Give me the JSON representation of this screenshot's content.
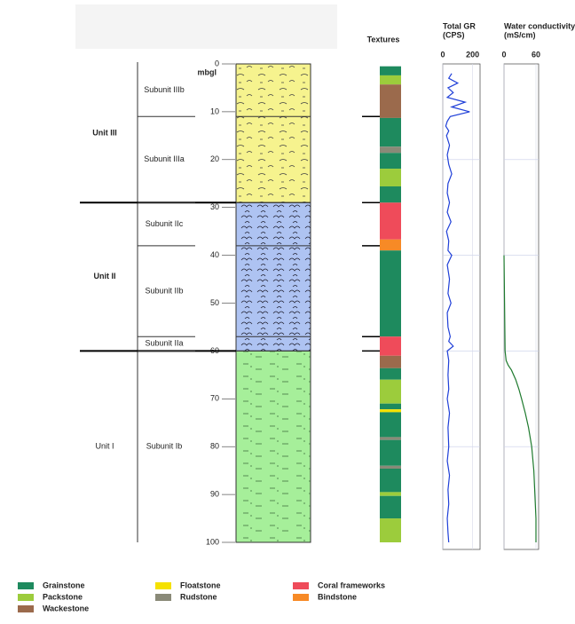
{
  "depth_axis": {
    "label": "mbgl",
    "lim": [
      0,
      100
    ],
    "ticks": [
      0,
      10,
      20,
      30,
      40,
      50,
      60,
      70,
      80,
      90,
      100
    ]
  },
  "units": [
    {
      "label": "Unit III",
      "top": 0,
      "base": 29,
      "color": "#f6f38e"
    },
    {
      "label": "Unit II",
      "top": 29,
      "base": 60,
      "color": "#aec3f2"
    },
    {
      "label": "Unit I",
      "top": 60,
      "base": 100,
      "color": "#a6ef9a"
    }
  ],
  "subunits": [
    {
      "label": "Subunit IIIb",
      "top": 0,
      "base": 11
    },
    {
      "label": "Subunit IIIa",
      "top": 11,
      "base": 29
    },
    {
      "label": "Subunit IIc",
      "top": 29,
      "base": 38
    },
    {
      "label": "Subunit IIb",
      "top": 38,
      "base": 57
    },
    {
      "label": "Subunit IIa",
      "top": 57,
      "base": 60
    },
    {
      "label": "Subunit Ib",
      "top": 60,
      "base": 100
    }
  ],
  "textures": {
    "title": "Textures",
    "intervals": [
      {
        "top": 0.5,
        "base": 2.4,
        "texture": "Grainstone"
      },
      {
        "top": 2.4,
        "base": 4.3,
        "texture": "Packstone"
      },
      {
        "top": 4.3,
        "base": 11.3,
        "texture": "Wackestone"
      },
      {
        "top": 11.3,
        "base": 17.3,
        "texture": "Grainstone"
      },
      {
        "top": 17.3,
        "base": 18.6,
        "texture": "Rudstone"
      },
      {
        "top": 18.6,
        "base": 21.9,
        "texture": "Grainstone"
      },
      {
        "top": 21.9,
        "base": 25.6,
        "texture": "Packstone"
      },
      {
        "top": 25.6,
        "base": 29,
        "texture": "Grainstone"
      },
      {
        "top": 29,
        "base": 36.7,
        "texture": "Coral frameworks"
      },
      {
        "top": 36.7,
        "base": 39,
        "texture": "Bindstone"
      },
      {
        "top": 39,
        "base": 57,
        "texture": "Grainstone"
      },
      {
        "top": 57,
        "base": 61,
        "texture": "Coral frameworks"
      },
      {
        "top": 61,
        "base": 63.6,
        "texture": "Wackestone"
      },
      {
        "top": 63.6,
        "base": 66,
        "texture": "Grainstone"
      },
      {
        "top": 66,
        "base": 71,
        "texture": "Packstone"
      },
      {
        "top": 71,
        "base": 72.2,
        "texture": "Grainstone"
      },
      {
        "top": 72.2,
        "base": 72.8,
        "texture": "Floatstone"
      },
      {
        "top": 72.8,
        "base": 78,
        "texture": "Grainstone"
      },
      {
        "top": 78,
        "base": 78.6,
        "texture": "Rudstone"
      },
      {
        "top": 78.6,
        "base": 84,
        "texture": "Grainstone"
      },
      {
        "top": 84,
        "base": 84.6,
        "texture": "Rudstone"
      },
      {
        "top": 84.6,
        "base": 89.5,
        "texture": "Grainstone"
      },
      {
        "top": 89.5,
        "base": 90.3,
        "texture": "Packstone"
      },
      {
        "top": 90.3,
        "base": 95,
        "texture": "Grainstone"
      },
      {
        "top": 95,
        "base": 100,
        "texture": "Packstone"
      }
    ]
  },
  "legend": [
    {
      "label": "Grainstone",
      "color": "#1e8a5e"
    },
    {
      "label": "Packstone",
      "color": "#9ccc3c"
    },
    {
      "label": "Wackestone",
      "color": "#9b6a4c"
    },
    {
      "label": "Floatstone",
      "color": "#f5e100"
    },
    {
      "label": "Rudstone",
      "color": "#8a8a78"
    },
    {
      "label": "Coral frameworks",
      "color": "#ef4b5a"
    },
    {
      "label": "Bindstone",
      "color": "#f78a26"
    }
  ],
  "gr": {
    "title": "Total GR",
    "unit": "(CPS)",
    "color": "#1f3fd8",
    "xlim": [
      0,
      250
    ],
    "xticks": [
      0,
      200
    ],
    "depth": [
      2,
      3,
      4,
      5,
      6,
      7,
      8,
      9,
      10,
      11,
      12,
      13,
      14,
      15,
      17,
      19,
      21,
      23,
      25,
      27,
      29,
      31,
      33,
      35,
      37,
      39,
      40,
      42,
      45,
      48,
      50,
      52,
      55,
      57,
      58,
      59,
      60,
      62,
      65,
      68,
      70,
      73,
      76,
      80,
      83,
      86,
      89,
      92,
      95,
      98,
      100
    ],
    "values": [
      60,
      40,
      100,
      35,
      70,
      30,
      150,
      60,
      180,
      50,
      30,
      20,
      40,
      25,
      45,
      30,
      40,
      60,
      35,
      30,
      45,
      30,
      55,
      25,
      40,
      35,
      60,
      30,
      45,
      35,
      55,
      30,
      35,
      50,
      40,
      70,
      30,
      40,
      35,
      40,
      30,
      45,
      35,
      40,
      30,
      45,
      35,
      40,
      30,
      35,
      40
    ]
  },
  "conductivity": {
    "title": "Water conductivity",
    "unit": "(mS/cm)",
    "color": "#1e7a2e",
    "xlim": [
      0,
      65
    ],
    "xticks": [
      0,
      60
    ],
    "depth": [
      40,
      50,
      60,
      62,
      63,
      64,
      66,
      68,
      70,
      73,
      76,
      80,
      85,
      90,
      95,
      100
    ],
    "values": [
      0,
      1,
      2,
      4,
      8,
      14,
      22,
      28,
      33,
      40,
      46,
      52,
      56,
      58,
      60,
      60
    ]
  }
}
